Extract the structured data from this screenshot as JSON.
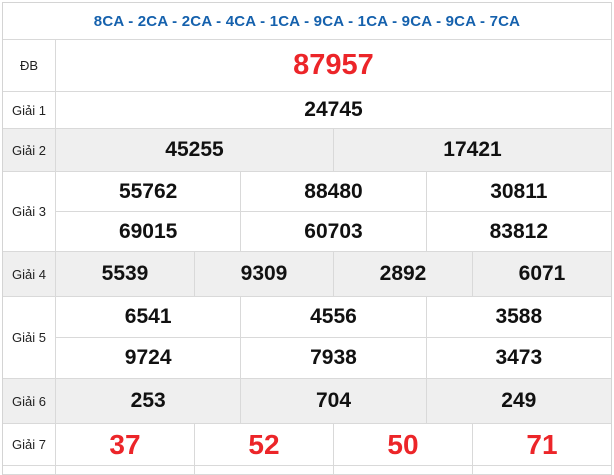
{
  "colors": {
    "header_blue": "#1561ad",
    "special_red": "#ec2529",
    "number_black": "#111111",
    "alt_row_gray": "#efefef",
    "border_gray": "#d9d9d9"
  },
  "header": {
    "title": "8CA - 2CA - 2CA - 4CA - 1CA - 9CA - 1CA - 9CA - 9CA - 7CA"
  },
  "table": {
    "rows": [
      {
        "label": "ĐB",
        "lines": [
          [
            "87957"
          ]
        ]
      },
      {
        "label": "Giải 1",
        "lines": [
          [
            "24745"
          ]
        ]
      },
      {
        "label": "Giải 2",
        "lines": [
          [
            "45255",
            "17421"
          ]
        ]
      },
      {
        "label": "Giải 3",
        "lines": [
          [
            "55762",
            "88480",
            "30811"
          ],
          [
            "69015",
            "60703",
            "83812"
          ]
        ]
      },
      {
        "label": "Giải 4",
        "lines": [
          [
            "5539",
            "9309",
            "2892",
            "6071"
          ]
        ]
      },
      {
        "label": "Giải 5",
        "lines": [
          [
            "6541",
            "4556",
            "3588"
          ],
          [
            "9724",
            "7938",
            "3473"
          ]
        ]
      },
      {
        "label": "Giải 6",
        "lines": [
          [
            "253",
            "704",
            "249"
          ]
        ]
      },
      {
        "label": "Giải 7",
        "lines": [
          [
            "37",
            "52",
            "50",
            "71"
          ]
        ]
      }
    ]
  }
}
